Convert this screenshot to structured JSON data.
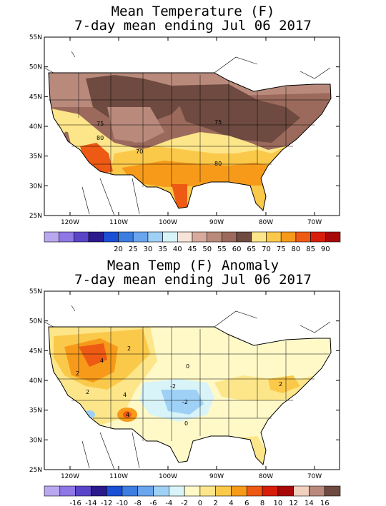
{
  "panel1": {
    "title_line1": "Mean Temperature (F)",
    "title_line2": "7-day mean ending Jul 06 2017",
    "lat_labels": [
      "55N",
      "50N",
      "45N",
      "40N",
      "35N",
      "30N",
      "25N"
    ],
    "lon_labels": [
      "120W",
      "110W",
      "100W",
      "90W",
      "80W",
      "70W"
    ],
    "contour_labels": [
      "75",
      "80",
      "70",
      "75",
      "80"
    ],
    "colorbar": {
      "colors": [
        "#b9a8f0",
        "#8f77e6",
        "#5a44c8",
        "#2a1a8c",
        "#1a4fd6",
        "#3c7de0",
        "#6aa5ee",
        "#9fd0f6",
        "#d8f4f8",
        "#f6e4d8",
        "#d7aa9c",
        "#b98a7c",
        "#9b6a5c",
        "#6e4a40",
        "#fde68a",
        "#fbc94a",
        "#f79a1a",
        "#ee5a14",
        "#d81e0a",
        "#a80808"
      ],
      "labels": [
        "20",
        "25",
        "30",
        "35",
        "40",
        "45",
        "50",
        "55",
        "60",
        "65",
        "70",
        "75",
        "80",
        "85",
        "90"
      ]
    }
  },
  "panel2": {
    "title_line1": "Mean Temp (F) Anomaly",
    "title_line2": "7-day mean ending Jul 06 2017",
    "lat_labels": [
      "55N",
      "50N",
      "45N",
      "40N",
      "35N",
      "30N",
      "25N"
    ],
    "lon_labels": [
      "120W",
      "110W",
      "100W",
      "90W",
      "80W",
      "70W"
    ],
    "contour_labels": [
      "2",
      "4",
      "2",
      "4",
      "-2",
      "0",
      "2",
      "-2",
      "0",
      "2",
      "4"
    ],
    "colorbar": {
      "colors": [
        "#b9a8f0",
        "#8f77e6",
        "#5a44c8",
        "#2a1a8c",
        "#1a4fd6",
        "#3c7de0",
        "#6aa5ee",
        "#9fd0f6",
        "#d8f4f8",
        "#fff9c8",
        "#fde68a",
        "#fbc94a",
        "#f79a1a",
        "#ee5a14",
        "#d81e0a",
        "#a80808",
        "#f2d0c0",
        "#b98a7c",
        "#6e4a40"
      ],
      "labels": [
        "-16",
        "-14",
        "-12",
        "-10",
        "-8",
        "-6",
        "-4",
        "-2",
        "0",
        "2",
        "4",
        "6",
        "8",
        "10",
        "12",
        "14",
        "16"
      ]
    }
  }
}
